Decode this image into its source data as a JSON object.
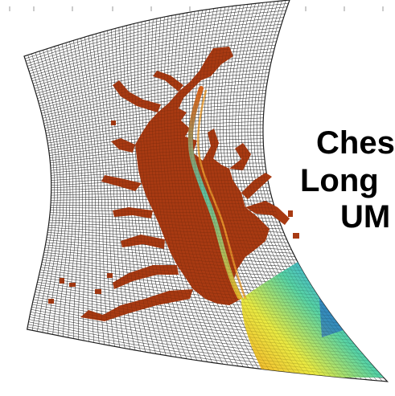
{
  "slide": {
    "title_lines": [
      "Ches",
      "Long",
      "UM"
    ]
  },
  "colors": {
    "grid_line": "#202020",
    "grid_bg": "#ffffff",
    "water_shallow": "#a83a12",
    "water_mid": "#f2d22a",
    "water_deep": "#1e55c8"
  }
}
